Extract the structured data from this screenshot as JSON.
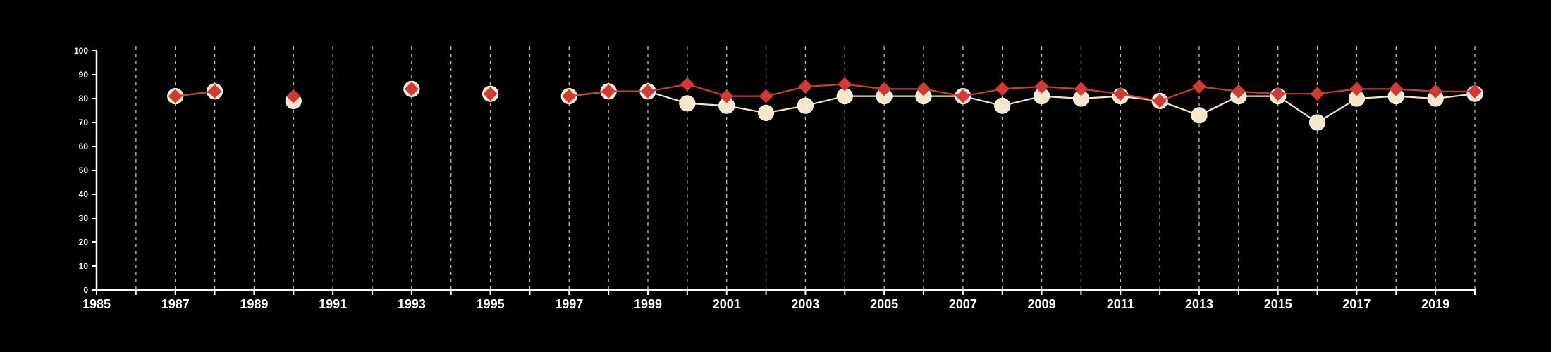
{
  "chart_data": {
    "type": "line",
    "title": "",
    "xlabel": "",
    "ylabel": "",
    "xlim": [
      1985,
      2020
    ],
    "ylim": [
      0,
      100
    ],
    "x_ticks": [
      1985,
      1986,
      1987,
      1988,
      1989,
      1990,
      1991,
      1992,
      1993,
      1994,
      1995,
      1996,
      1997,
      1998,
      1999,
      2000,
      2001,
      2002,
      2003,
      2004,
      2005,
      2006,
      2007,
      2008,
      2009,
      2010,
      2011,
      2012,
      2013,
      2014,
      2015,
      2016,
      2017,
      2018,
      2019,
      2020
    ],
    "x_tick_labels": [
      {
        "year": 1985,
        "label": "1985"
      },
      {
        "year": 1987,
        "label": "1987"
      },
      {
        "year": 1989,
        "label": "1989"
      },
      {
        "year": 1991,
        "label": "1991"
      },
      {
        "year": 1993,
        "label": "1993"
      },
      {
        "year": 1995,
        "label": "1995"
      },
      {
        "year": 1997,
        "label": "1997"
      },
      {
        "year": 1999,
        "label": "1999"
      },
      {
        "year": 2001,
        "label": "2001"
      },
      {
        "year": 2003,
        "label": "2003"
      },
      {
        "year": 2005,
        "label": "2005"
      },
      {
        "year": 2007,
        "label": "2007"
      },
      {
        "year": 2009,
        "label": "2009"
      },
      {
        "year": 2011,
        "label": "2011"
      },
      {
        "year": 2013,
        "label": "2013"
      },
      {
        "year": 2015,
        "label": "2015"
      },
      {
        "year": 2017,
        "label": "2017"
      },
      {
        "year": 2019,
        "label": "2019"
      }
    ],
    "y_tick_labels": [
      {
        "value": 0,
        "label": "0"
      },
      {
        "value": 10,
        "label": "10"
      },
      {
        "value": 20,
        "label": "20"
      },
      {
        "value": 30,
        "label": "30"
      },
      {
        "value": 40,
        "label": "40"
      },
      {
        "value": 50,
        "label": "50"
      },
      {
        "value": 60,
        "label": "60"
      },
      {
        "value": 70,
        "label": "70"
      },
      {
        "value": 80,
        "label": "80"
      },
      {
        "value": 90,
        "label": "90"
      },
      {
        "value": 100,
        "label": "100"
      }
    ],
    "grid": {
      "vertical": true,
      "style": "dashed",
      "horizontal": false
    },
    "legend": "none",
    "series": [
      {
        "marker": "circle",
        "color": "#f5e6cc",
        "points": [
          [
            1987,
            81
          ],
          [
            1988,
            83
          ],
          [
            1990,
            79
          ],
          [
            1993,
            84
          ],
          [
            1995,
            82
          ],
          [
            1997,
            81
          ],
          [
            1998,
            83
          ],
          [
            1999,
            83
          ],
          [
            2000,
            78
          ],
          [
            2001,
            77
          ],
          [
            2002,
            74
          ],
          [
            2003,
            77
          ],
          [
            2004,
            81
          ],
          [
            2005,
            81
          ],
          [
            2006,
            81
          ],
          [
            2007,
            81
          ],
          [
            2008,
            77
          ],
          [
            2009,
            81
          ],
          [
            2010,
            80
          ],
          [
            2011,
            81
          ],
          [
            2012,
            79
          ],
          [
            2013,
            73
          ],
          [
            2014,
            81
          ],
          [
            2015,
            81
          ],
          [
            2016,
            70
          ],
          [
            2017,
            80
          ],
          [
            2018,
            81
          ],
          [
            2019,
            80
          ],
          [
            2020,
            82
          ]
        ]
      },
      {
        "marker": "diamond",
        "color": "#d23a36",
        "points": [
          [
            1987,
            81
          ],
          [
            1988,
            83
          ],
          [
            1990,
            81
          ],
          [
            1993,
            84
          ],
          [
            1995,
            82
          ],
          [
            1997,
            81
          ],
          [
            1998,
            83
          ],
          [
            1999,
            83
          ],
          [
            2000,
            86
          ],
          [
            2001,
            81
          ],
          [
            2002,
            81
          ],
          [
            2003,
            85
          ],
          [
            2004,
            86
          ],
          [
            2005,
            84
          ],
          [
            2006,
            84
          ],
          [
            2007,
            81
          ],
          [
            2008,
            84
          ],
          [
            2009,
            85
          ],
          [
            2010,
            84
          ],
          [
            2011,
            82
          ],
          [
            2012,
            79
          ],
          [
            2013,
            85
          ],
          [
            2014,
            83
          ],
          [
            2015,
            82
          ],
          [
            2016,
            82
          ],
          [
            2017,
            84
          ],
          [
            2018,
            84
          ],
          [
            2019,
            83
          ],
          [
            2020,
            83
          ]
        ]
      }
    ]
  }
}
